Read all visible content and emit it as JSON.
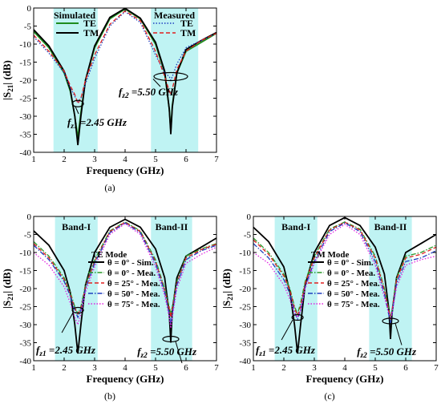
{
  "figure": {
    "panels": [
      {
        "caption": "(a)",
        "xlabel": "Frequency (GHz)",
        "ylabel": "|S21| (dB)",
        "legend_title_left": "Simulated",
        "legend_title_right": "Measured",
        "annotations": [
          "f_{z2} =5.50 GHz",
          "f_{z1} =2.45 GHz"
        ]
      },
      {
        "caption": "(b)",
        "xlabel": "Frequency (GHz)",
        "ylabel": "|S21| (dB)",
        "mode_label": "TE Mode",
        "band_labels": [
          "Band-I",
          "Band-II"
        ],
        "annotations": [
          "f_{z1} =2.45 GHz",
          "f_{z2} =5.50 GHz"
        ]
      },
      {
        "caption": "(c)",
        "xlabel": "Frequency (GHz)",
        "ylabel": "|S21| (dB)",
        "mode_label": "TM Mode",
        "band_labels": [
          "Band-I",
          "Band-II"
        ],
        "annotations": [
          "f_{z1} =2.45 GHz",
          "f_{z2} =5.50 GHz"
        ]
      }
    ]
  },
  "chart_data": [
    {
      "type": "line",
      "xlabel": "Frequency (GHz)",
      "ylabel": "|S21| (dB)",
      "xlim": [
        1,
        7
      ],
      "ylim": [
        -40,
        0
      ],
      "xticks": [
        1,
        2,
        3,
        4,
        5,
        6,
        7
      ],
      "yticks": [
        0,
        -5,
        -10,
        -15,
        -20,
        -25,
        -30,
        -35,
        -40
      ],
      "shaded_bands": [
        [
          1.65,
          3.1
        ],
        [
          4.85,
          6.4
        ]
      ],
      "x": [
        1,
        1.5,
        2,
        2.2,
        2.35,
        2.45,
        2.55,
        2.7,
        3,
        3.5,
        4,
        4.5,
        5,
        5.3,
        5.45,
        5.5,
        5.55,
        5.7,
        6,
        6.5,
        7
      ],
      "series": [
        {
          "name": "TE",
          "group": "Simulated",
          "color": "#1e8c1e",
          "dash": "solid",
          "values": [
            -6.5,
            -11,
            -18,
            -23,
            -30,
            -36,
            -29,
            -20,
            -11,
            -3,
            -0.3,
            -3,
            -10,
            -18,
            -28,
            -34,
            -27,
            -18,
            -12,
            -9.5,
            -7
          ]
        },
        {
          "name": "TM",
          "group": "Simulated",
          "color": "#000000",
          "dash": "solid",
          "values": [
            -6,
            -10.5,
            -17.5,
            -22.5,
            -30,
            -38,
            -30,
            -20,
            -10.5,
            -2.6,
            -0.1,
            -2.8,
            -9.5,
            -17.5,
            -28,
            -35,
            -27.5,
            -18,
            -11.5,
            -9,
            -6.8
          ]
        },
        {
          "name": "TE",
          "group": "Measured",
          "color": "#1f3fbf",
          "dash": "dot",
          "values": [
            -8,
            -12.5,
            -18,
            -22,
            -24.5,
            -26,
            -25,
            -21,
            -14,
            -5,
            -1,
            -4,
            -13,
            -18,
            -19,
            -20,
            -19,
            -15.5,
            -11,
            -9,
            -7
          ]
        },
        {
          "name": "TM",
          "group": "Measured",
          "color": "#e02020",
          "dash": "dash",
          "values": [
            -7.5,
            -12,
            -17.5,
            -21.5,
            -24,
            -26.5,
            -25,
            -20,
            -13,
            -4.5,
            -0.8,
            -3.5,
            -12,
            -19,
            -23,
            -24,
            -22.5,
            -17,
            -12,
            -9,
            -7
          ]
        }
      ],
      "annotations": [
        {
          "text": "f_{z2} =5.50 GHz",
          "x": 5.5,
          "y": -19
        },
        {
          "text": "f_{z1} =2.45 GHz",
          "x": 2.45,
          "y": -26
        }
      ]
    },
    {
      "type": "line",
      "xlabel": "Frequency (GHz)",
      "ylabel": "|S21| (dB)",
      "xlim": [
        1,
        7
      ],
      "ylim": [
        -40,
        0
      ],
      "xticks": [
        1,
        2,
        3,
        4,
        5,
        6,
        7
      ],
      "yticks": [
        0,
        -5,
        -10,
        -15,
        -20,
        -25,
        -30,
        -35,
        -40
      ],
      "shaded_bands": [
        [
          1.7,
          3.1
        ],
        [
          4.85,
          6.2
        ]
      ],
      "x": [
        1,
        1.5,
        2,
        2.2,
        2.35,
        2.45,
        2.55,
        2.7,
        3,
        3.5,
        4,
        4.5,
        5,
        5.3,
        5.45,
        5.5,
        5.55,
        5.7,
        6,
        6.5,
        7
      ],
      "series": [
        {
          "name": "θ = 0° - Sim.",
          "color": "#000000",
          "dash": "solid",
          "values": [
            -4,
            -8,
            -15,
            -21,
            -30,
            -38,
            -30,
            -19,
            -10,
            -3,
            -0.8,
            -3,
            -9,
            -17,
            -27,
            -35,
            -26,
            -17,
            -11,
            -8.5,
            -6
          ]
        },
        {
          "name": "θ = 0° - Mea.",
          "color": "#2a9a2a",
          "dash": "dashdot",
          "values": [
            -7,
            -11,
            -17,
            -21,
            -25,
            -27,
            -25,
            -19,
            -12,
            -4,
            -1.5,
            -4,
            -12,
            -20,
            -25,
            -27,
            -25,
            -18,
            -11,
            -9,
            -7.5
          ]
        },
        {
          "name": "θ = 25° - Mea.",
          "color": "#e02020",
          "dash": "dash",
          "values": [
            -7.5,
            -11.5,
            -17.5,
            -21.5,
            -25.5,
            -27,
            -25.5,
            -19.5,
            -12.5,
            -4.2,
            -1.6,
            -4.2,
            -12.5,
            -20.5,
            -25.5,
            -28,
            -25.5,
            -18.5,
            -11.5,
            -9.2,
            -7.7
          ]
        },
        {
          "name": "θ = 50° - Mea.",
          "color": "#1f3fbf",
          "dash": "dashdot",
          "values": [
            -8,
            -12,
            -18,
            -22,
            -26,
            -28,
            -26,
            -20,
            -13,
            -4.5,
            -1.8,
            -4.5,
            -13,
            -21,
            -27,
            -30,
            -27,
            -19,
            -12,
            -9.5,
            -8
          ]
        },
        {
          "name": "θ = 75° - Mea.",
          "color": "#e020e0",
          "dash": "dot",
          "values": [
            -10,
            -13.5,
            -19.5,
            -24,
            -28,
            -30,
            -27,
            -21,
            -14,
            -5,
            -2,
            -5,
            -14,
            -22,
            -28,
            -31,
            -28,
            -20,
            -13,
            -10.5,
            -8.5
          ]
        }
      ],
      "annotations": [
        {
          "text": "f_{z1} =2.45 GHz",
          "x": 2.45,
          "y": -26
        },
        {
          "text": "f_{z2} =5.50 GHz",
          "x": 5.5,
          "y": -34
        }
      ]
    },
    {
      "type": "line",
      "xlabel": "Frequency (GHz)",
      "ylabel": "|S21| (dB)",
      "xlim": [
        1,
        7
      ],
      "ylim": [
        -40,
        0
      ],
      "xticks": [
        1,
        2,
        3,
        4,
        5,
        6,
        7
      ],
      "yticks": [
        0,
        -5,
        -10,
        -15,
        -20,
        -25,
        -30,
        -35,
        -40
      ],
      "shaded_bands": [
        [
          1.7,
          3.1
        ],
        [
          4.8,
          6.2
        ]
      ],
      "x": [
        1,
        1.5,
        2,
        2.2,
        2.35,
        2.45,
        2.55,
        2.7,
        3,
        3.5,
        4,
        4.5,
        5,
        5.3,
        5.45,
        5.5,
        5.55,
        5.7,
        6,
        6.5,
        7
      ],
      "series": [
        {
          "name": "θ = 0° - Sim.",
          "color": "#000000",
          "dash": "solid",
          "values": [
            -3,
            -7,
            -14,
            -21,
            -30,
            -38,
            -30,
            -19,
            -10,
            -2.5,
            -0.3,
            -2.5,
            -8.5,
            -16,
            -26,
            -34,
            -27,
            -17,
            -10,
            -7.5,
            -5
          ]
        },
        {
          "name": "θ = 0° - Mea.",
          "color": "#2a9a2a",
          "dash": "dashdot",
          "values": [
            -6,
            -10,
            -16,
            -20,
            -25,
            -27,
            -24,
            -18,
            -11,
            -3.5,
            -1.5,
            -3.5,
            -11,
            -20,
            -26,
            -28,
            -26,
            -17,
            -11,
            -10,
            -8
          ]
        },
        {
          "name": "θ = 25° - Mea.",
          "color": "#e02020",
          "dash": "dash",
          "values": [
            -6.5,
            -10.5,
            -16.5,
            -20.5,
            -25.5,
            -27.5,
            -25,
            -18.5,
            -11.5,
            -3.8,
            -1.6,
            -3.8,
            -11.5,
            -20.5,
            -26.5,
            -28.5,
            -26,
            -17.5,
            -11.5,
            -10.5,
            -8.5
          ]
        },
        {
          "name": "θ = 50° - Mea.",
          "color": "#1f3fbf",
          "dash": "dashdot",
          "values": [
            -7.5,
            -11.5,
            -17.5,
            -21.5,
            -26.5,
            -28.5,
            -26,
            -19.5,
            -12.5,
            -4.2,
            -1.8,
            -4.2,
            -12.5,
            -21.5,
            -27.5,
            -29.5,
            -27,
            -18.5,
            -12.5,
            -11.5,
            -9.5
          ]
        },
        {
          "name": "θ = 75° - Mea.",
          "color": "#e020e0",
          "dash": "dot",
          "values": [
            -10,
            -13,
            -19,
            -23,
            -27,
            -28,
            -26,
            -20,
            -13,
            -5,
            -2.2,
            -5,
            -13.5,
            -22.5,
            -27,
            -28,
            -27,
            -19.5,
            -13.5,
            -12,
            -11
          ]
        }
      ],
      "annotations": [
        {
          "text": "f_{z1} =2.45 GHz",
          "x": 2.45,
          "y": -28
        },
        {
          "text": "f_{z2} =5.50 GHz",
          "x": 5.5,
          "y": -29
        }
      ]
    }
  ]
}
